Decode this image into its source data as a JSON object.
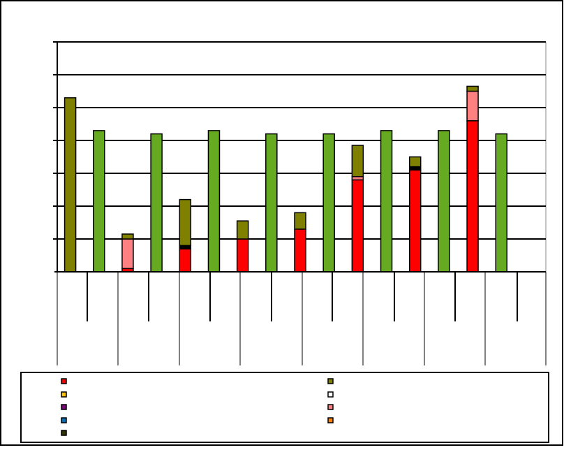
{
  "chart_data": {
    "type": "bar",
    "stacked": true,
    "title": "",
    "xlabel": "",
    "ylabel": "",
    "grid": true,
    "legend_position": "bottom",
    "categories": [
      "",
      "",
      "",
      "",
      "",
      "",
      "",
      "",
      "",
      "",
      "",
      "",
      "",
      "",
      "",
      "",
      ""
    ],
    "ylim": [
      0,
      7
    ],
    "series": [
      {
        "color": "#FF0000",
        "values": [
          0,
          0,
          0.1,
          0,
          0.7,
          0,
          1.0,
          0,
          1.3,
          0,
          2.8,
          0,
          3.1,
          0,
          4.6,
          0,
          0
        ]
      },
      {
        "color": "#000000",
        "values": [
          0,
          0,
          0,
          0,
          0.1,
          0,
          0,
          0,
          0,
          0,
          0,
          0,
          0.1,
          0,
          0,
          0,
          0
        ]
      },
      {
        "color": "#FF8080",
        "values": [
          0,
          0,
          0.9,
          0,
          0,
          0,
          0,
          0,
          0,
          0,
          0.1,
          0,
          0,
          0,
          0.9,
          0,
          0
        ]
      },
      {
        "color": "#808000",
        "values": [
          5.3,
          0,
          0.15,
          0,
          1.4,
          0,
          0.55,
          0,
          0.5,
          0,
          0.95,
          0,
          0.3,
          0,
          0.15,
          0,
          0
        ]
      },
      {
        "color": "#66AA22",
        "values": [
          0,
          4.3,
          0,
          4.2,
          0,
          4.3,
          0,
          4.2,
          0,
          4.2,
          0,
          4.3,
          0,
          4.3,
          0,
          4.2,
          0
        ]
      }
    ],
    "legend": [
      {
        "color": "#FF0000",
        "label": ""
      },
      {
        "color": "#808000",
        "label": ""
      },
      {
        "color": "#FFC000",
        "label": ""
      },
      {
        "color": "#FFFFFF",
        "label": ""
      },
      {
        "color": "#800080",
        "label": ""
      },
      {
        "color": "#FF8080",
        "label": ""
      },
      {
        "color": "#0070C0",
        "label": ""
      },
      {
        "color": "#FF8000",
        "label": ""
      },
      {
        "color": "#333300",
        "label": ""
      }
    ]
  }
}
